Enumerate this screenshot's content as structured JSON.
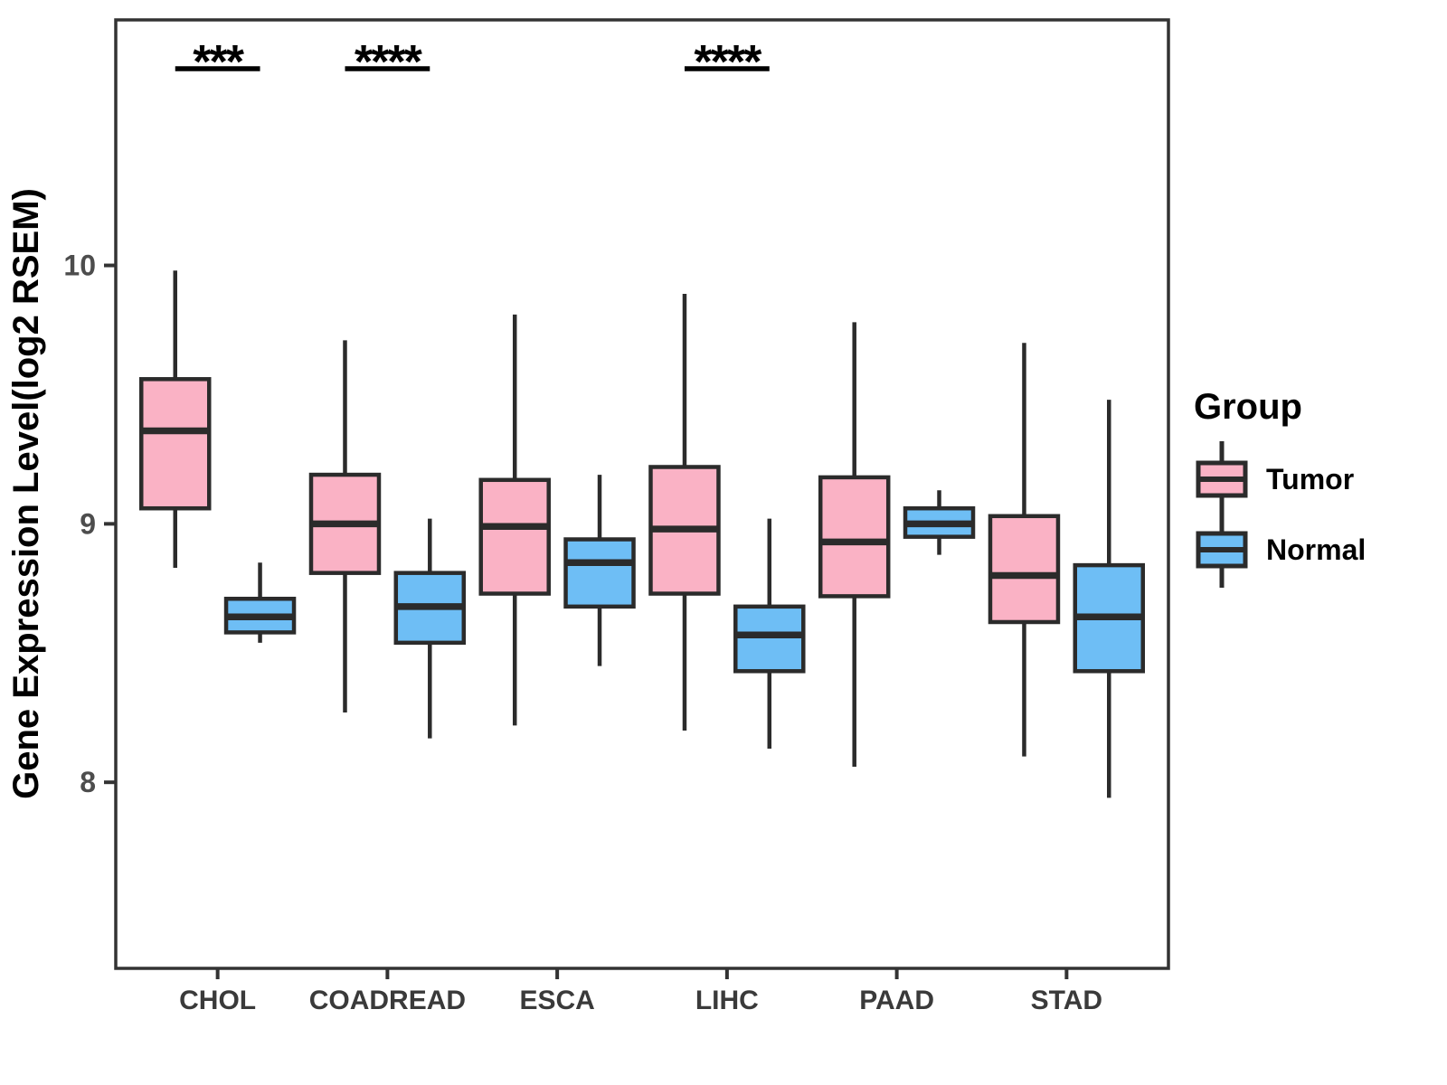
{
  "figure": {
    "y_axis": {
      "title": "Gene Expression Level(log2 RSEM)",
      "tick_labels": [
        "10",
        "9",
        "8"
      ],
      "tick_values": [
        10,
        9,
        8
      ]
    },
    "x_axis": {
      "tick_labels": [
        "CHOL",
        "COADREAD",
        "ESCA",
        "LIHC",
        "PAAD",
        "STAD"
      ]
    },
    "legend": {
      "title": "Group",
      "entries": [
        {
          "label": "Tumor",
          "color": "#FAB2C5"
        },
        {
          "label": "Normal",
          "color": "#6EBEF5"
        }
      ]
    },
    "annotations": [
      {
        "category": "CHOL",
        "label": "***"
      },
      {
        "category": "COADREAD",
        "label": "****"
      },
      {
        "category": "LIHC",
        "label": "****"
      }
    ],
    "style": {
      "box_stroke": "#2B2B2B",
      "median_stroke": "#2B2B2B",
      "panel_border": "#333333",
      "axis_text_color": "#4D4D4D",
      "x_text_color": "#3A3A3A",
      "annotation_color": "#000000"
    }
  },
  "chart_data": {
    "type": "boxplot",
    "title": "",
    "xlabel": "",
    "ylabel": "Gene Expression Level(log2 RSEM)",
    "ylim": [
      7.28,
      10.95
    ],
    "y_ticks": [
      10,
      9,
      8
    ],
    "grid": false,
    "legend_position": "right",
    "categories": [
      "CHOL",
      "COADREAD",
      "ESCA",
      "LIHC",
      "PAAD",
      "STAD"
    ],
    "series": [
      {
        "name": "Tumor",
        "color": "#FAB2C5",
        "boxes": [
          {
            "category": "CHOL",
            "whisker_low": 8.83,
            "q1": 9.06,
            "median": 9.36,
            "q3": 9.56,
            "whisker_high": 9.98
          },
          {
            "category": "COADREAD",
            "whisker_low": 8.27,
            "q1": 8.81,
            "median": 9.0,
            "q3": 9.19,
            "whisker_high": 9.71
          },
          {
            "category": "ESCA",
            "whisker_low": 8.22,
            "q1": 8.73,
            "median": 8.99,
            "q3": 9.17,
            "whisker_high": 9.81
          },
          {
            "category": "LIHC",
            "whisker_low": 8.2,
            "q1": 8.73,
            "median": 8.98,
            "q3": 9.22,
            "whisker_high": 9.89
          },
          {
            "category": "PAAD",
            "whisker_low": 8.06,
            "q1": 8.72,
            "median": 8.93,
            "q3": 9.18,
            "whisker_high": 9.78
          },
          {
            "category": "STAD",
            "whisker_low": 8.1,
            "q1": 8.62,
            "median": 8.8,
            "q3": 9.03,
            "whisker_high": 9.7
          }
        ]
      },
      {
        "name": "Normal",
        "color": "#6EBEF5",
        "boxes": [
          {
            "category": "CHOL",
            "whisker_low": 8.54,
            "q1": 8.58,
            "median": 8.64,
            "q3": 8.71,
            "whisker_high": 8.85
          },
          {
            "category": "COADREAD",
            "whisker_low": 8.17,
            "q1": 8.54,
            "median": 8.68,
            "q3": 8.81,
            "whisker_high": 9.02
          },
          {
            "category": "ESCA",
            "whisker_low": 8.45,
            "q1": 8.68,
            "median": 8.85,
            "q3": 8.94,
            "whisker_high": 9.19
          },
          {
            "category": "LIHC",
            "whisker_low": 8.13,
            "q1": 8.43,
            "median": 8.57,
            "q3": 8.68,
            "whisker_high": 9.02
          },
          {
            "category": "PAAD",
            "whisker_low": 8.88,
            "q1": 8.95,
            "median": 9.0,
            "q3": 9.06,
            "whisker_high": 9.13
          },
          {
            "category": "STAD",
            "whisker_low": 7.94,
            "q1": 8.43,
            "median": 8.64,
            "q3": 8.84,
            "whisker_high": 9.48
          }
        ]
      }
    ]
  }
}
